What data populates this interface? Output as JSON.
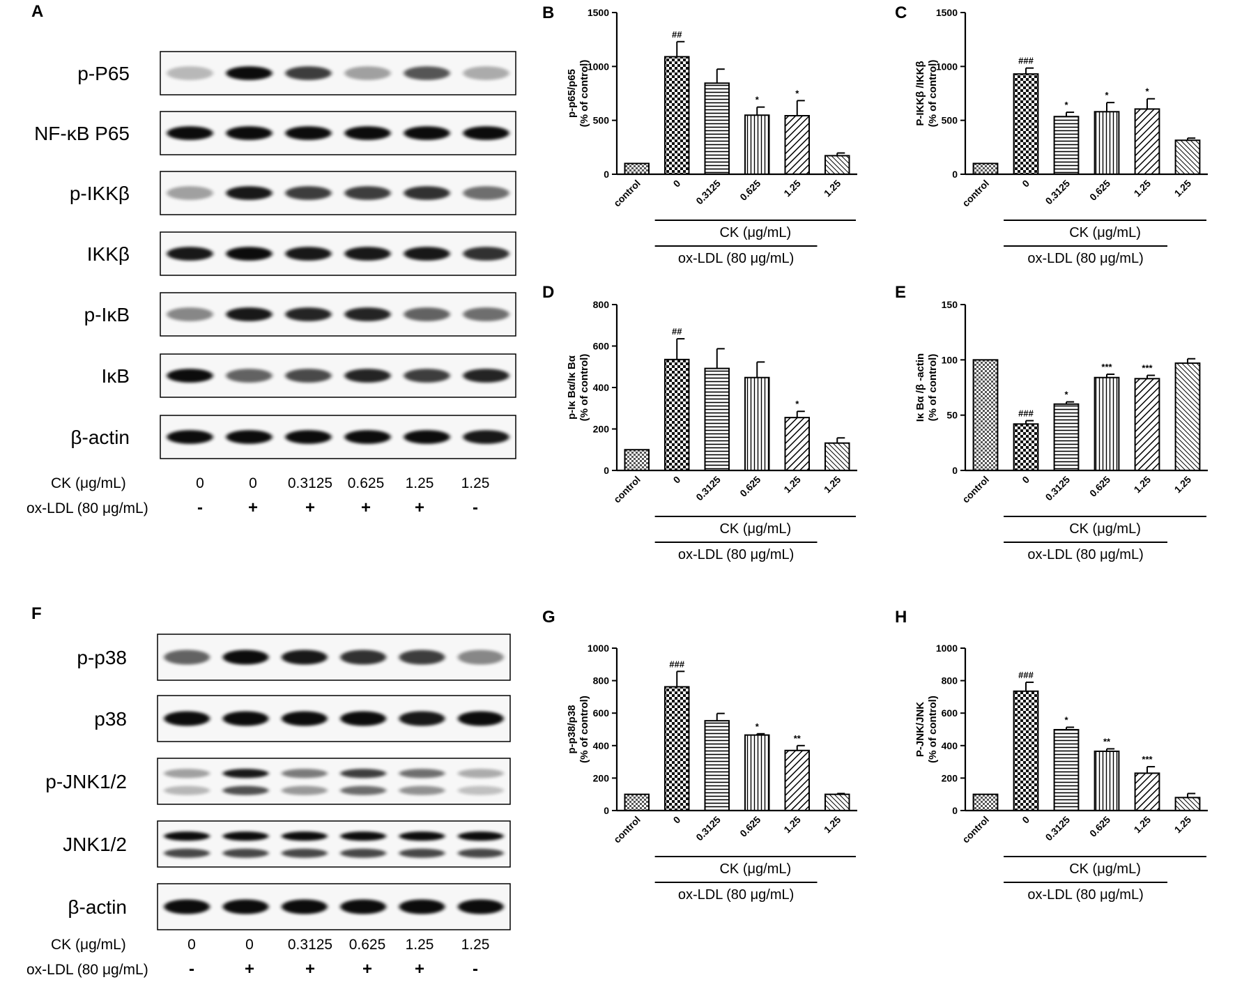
{
  "blots": [
    {
      "panel_letter": "A",
      "bands": [
        {
          "label": "p-P65",
          "intensity": [
            0.25,
            0.95,
            0.75,
            0.35,
            0.65,
            0.3
          ]
        },
        {
          "label": "NF-κB P65",
          "intensity": [
            0.95,
            0.95,
            0.95,
            0.95,
            0.95,
            0.95
          ]
        },
        {
          "label": "p-IKKβ",
          "intensity": [
            0.35,
            0.9,
            0.75,
            0.75,
            0.8,
            0.55
          ]
        },
        {
          "label": "IKKβ",
          "intensity": [
            0.9,
            0.95,
            0.9,
            0.9,
            0.9,
            0.8
          ]
        },
        {
          "label": "p-IκB",
          "intensity": [
            0.45,
            0.9,
            0.85,
            0.85,
            0.6,
            0.55
          ]
        },
        {
          "label": "IκB",
          "intensity": [
            0.95,
            0.6,
            0.7,
            0.85,
            0.75,
            0.85
          ]
        },
        {
          "label": "β-actin",
          "intensity": [
            0.95,
            0.95,
            0.95,
            0.95,
            0.95,
            0.9
          ]
        }
      ],
      "ck_label": "CK (μg/mL)",
      "ck_values": [
        "0",
        "0",
        "0.3125",
        "0.625",
        "1.25",
        "1.25"
      ],
      "oxldl_label": "ox-LDL (80 μg/mL)",
      "oxldl_values": [
        "-",
        "+",
        "+",
        "+",
        "+",
        "-"
      ]
    },
    {
      "panel_letter": "F",
      "bands": [
        {
          "label": "p-p38",
          "intensity": [
            0.6,
            0.95,
            0.9,
            0.8,
            0.75,
            0.45
          ]
        },
        {
          "label": "p38",
          "intensity": [
            0.95,
            0.95,
            0.95,
            0.95,
            0.9,
            0.95
          ]
        },
        {
          "label": "p-JNK1/2",
          "intensity": [
            0.35,
            0.9,
            0.5,
            0.75,
            0.55,
            0.3
          ]
        },
        {
          "label": "JNK1/2",
          "intensity": [
            0.95,
            0.95,
            0.95,
            0.95,
            0.95,
            0.95
          ]
        },
        {
          "label": "β-actin",
          "intensity": [
            0.95,
            0.95,
            0.95,
            0.95,
            0.95,
            0.95
          ]
        }
      ],
      "ck_label": "CK (μg/mL)",
      "ck_values": [
        "0",
        "0",
        "0.3125",
        "0.625",
        "1.25",
        "1.25"
      ],
      "oxldl_label": "ox-LDL (80 μg/mL)",
      "oxldl_values": [
        "-",
        "+",
        "+",
        "+",
        "+",
        "-"
      ]
    }
  ],
  "chart_data": [
    {
      "type": "bar",
      "panel_letter": "B",
      "categories": [
        "control",
        "0",
        "0.3125",
        "0.625",
        "1.25",
        "1.25"
      ],
      "values": [
        100,
        1090,
        845,
        548,
        543,
        172
      ],
      "errors": [
        0,
        140,
        130,
        75,
        140,
        25
      ],
      "annotations": [
        "",
        "##",
        "",
        "*",
        "*",
        ""
      ],
      "patterns": [
        "small-check",
        "check",
        "hlines",
        "vlines",
        "diag-wide",
        "diag"
      ],
      "ylabel_line1": "p-p65/p65",
      "ylabel_line2": "(% of control)",
      "yticks": [
        "0",
        "500",
        "1000",
        "1500"
      ],
      "ylim": [
        0,
        1500
      ],
      "group_label_inner": "CK (μg/mL)",
      "group_label_outer": "ox-LDL (80 μg/mL)"
    },
    {
      "type": "bar",
      "panel_letter": "C",
      "categories": [
        "control",
        "0",
        "0.3125",
        "0.625",
        "1.25",
        "1.25"
      ],
      "values": [
        100,
        930,
        535,
        580,
        605,
        315
      ],
      "errors": [
        0,
        55,
        40,
        85,
        95,
        20
      ],
      "annotations": [
        "",
        "###",
        "*",
        "*",
        "*",
        ""
      ],
      "patterns": [
        "small-check",
        "check",
        "hlines",
        "vlines",
        "diag-wide",
        "diag"
      ],
      "ylabel_line1": "P-IKKβ /IKKβ",
      "ylabel_line2": "(% of control)",
      "yticks": [
        "0",
        "500",
        "1000",
        "1500"
      ],
      "ylim": [
        0,
        1500
      ],
      "group_label_inner": "CK (μg/mL)",
      "group_label_outer": "ox-LDL (80 μg/mL)"
    },
    {
      "type": "bar",
      "panel_letter": "D",
      "categories": [
        "control",
        "0",
        "0.3125",
        "0.625",
        "1.25",
        "1.25"
      ],
      "values": [
        100,
        535,
        492,
        448,
        255,
        132
      ],
      "errors": [
        0,
        100,
        95,
        75,
        30,
        25
      ],
      "annotations": [
        "",
        "##",
        "",
        "",
        "*",
        ""
      ],
      "patterns": [
        "small-check",
        "check",
        "hlines",
        "vlines",
        "diag-wide",
        "diag"
      ],
      "ylabel_line1": "p-Iκ Bα/Iκ Bα",
      "ylabel_line2": "(% of control)",
      "yticks": [
        "0",
        "200",
        "400",
        "600",
        "800"
      ],
      "ylim": [
        0,
        800
      ],
      "group_label_inner": "CK (μg/mL)",
      "group_label_outer": "ox-LDL (80 μg/mL)"
    },
    {
      "type": "bar",
      "panel_letter": "E",
      "categories": [
        "control",
        "0",
        "0.3125",
        "0.625",
        "1.25",
        "1.25"
      ],
      "values": [
        100,
        42,
        60,
        84,
        83,
        97
      ],
      "errors": [
        0,
        3,
        2,
        3,
        3,
        4
      ],
      "annotations": [
        "",
        "###",
        "*",
        "***",
        "***",
        ""
      ],
      "patterns": [
        "small-check",
        "check",
        "hlines",
        "vlines",
        "diag-wide",
        "diag"
      ],
      "ylabel_line1": "Iκ Bα /β -actin",
      "ylabel_line2": "(% of control)",
      "yticks": [
        "0",
        "50",
        "100",
        "150"
      ],
      "ylim": [
        0,
        150
      ],
      "group_label_inner": "CK (μg/mL)",
      "group_label_outer": "ox-LDL (80 μg/mL)"
    },
    {
      "type": "bar",
      "panel_letter": "G",
      "categories": [
        "control",
        "0",
        "0.3125",
        "0.625",
        "1.25",
        "1.25"
      ],
      "values": [
        100,
        762,
        553,
        465,
        370,
        100
      ],
      "errors": [
        0,
        95,
        45,
        8,
        30,
        5
      ],
      "annotations": [
        "",
        "###",
        "",
        "*",
        "**",
        ""
      ],
      "patterns": [
        "small-check",
        "check",
        "hlines",
        "vlines",
        "diag-wide",
        "diag"
      ],
      "ylabel_line1": "p-p38/p38",
      "ylabel_line2": "(% of control)",
      "yticks": [
        "0",
        "200",
        "400",
        "600",
        "800",
        "1000"
      ],
      "ylim": [
        0,
        1000
      ],
      "group_label_inner": "CK (μg/mL)",
      "group_label_outer": "ox-LDL (80 μg/mL)"
    },
    {
      "type": "bar",
      "panel_letter": "H",
      "categories": [
        "control",
        "0",
        "0.3125",
        "0.625",
        "1.25",
        "1.25"
      ],
      "values": [
        100,
        735,
        498,
        365,
        230,
        80
      ],
      "errors": [
        0,
        55,
        15,
        15,
        40,
        25
      ],
      "annotations": [
        "",
        "###",
        "*",
        "**",
        "***",
        ""
      ],
      "patterns": [
        "small-check",
        "check",
        "hlines",
        "vlines",
        "diag-wide",
        "diag"
      ],
      "ylabel_line1": "P-JNK/JNK",
      "ylabel_line2": "(% of control)",
      "yticks": [
        "0",
        "200",
        "400",
        "600",
        "800",
        "1000"
      ],
      "ylim": [
        0,
        1000
      ],
      "group_label_inner": "CK (μg/mL)",
      "group_label_outer": "ox-LDL (80 μg/mL)"
    }
  ]
}
